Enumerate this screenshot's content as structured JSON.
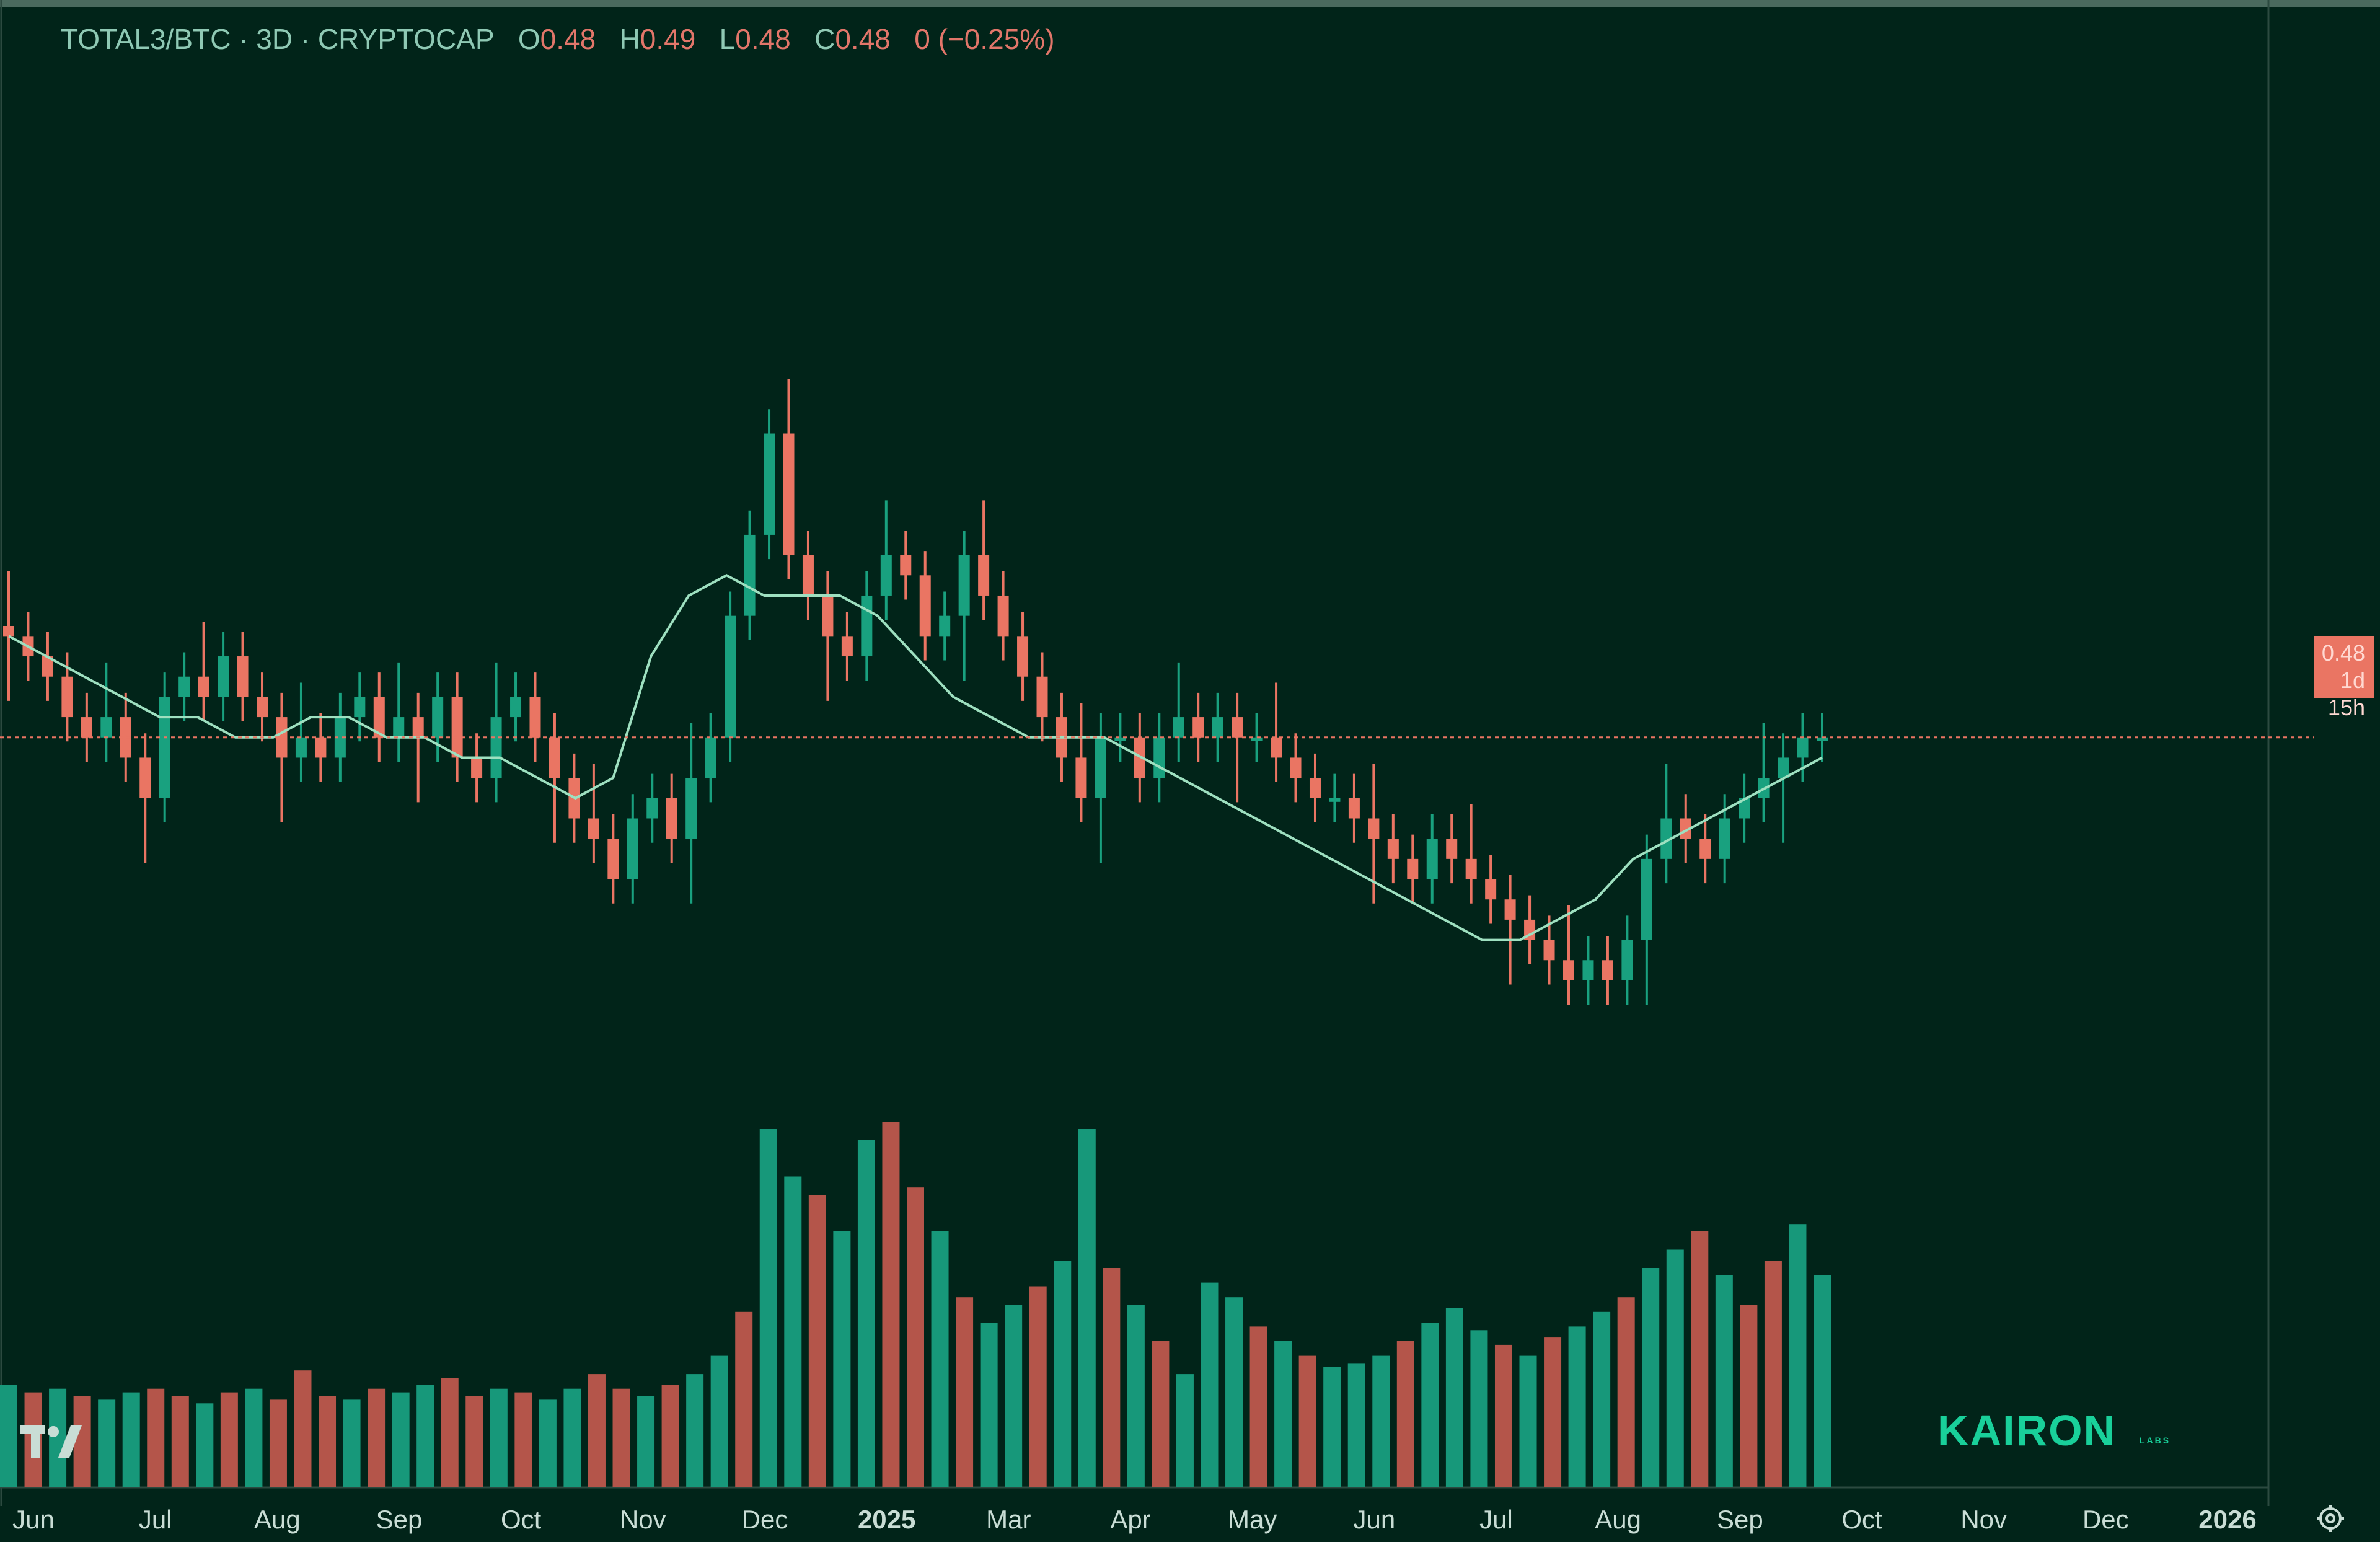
{
  "header": {
    "symbol": "TOTAL3/BTC · 3D · CRYPTOCAP",
    "o_label": "O",
    "o_value": "0.48",
    "h_label": "H",
    "h_value": "0.49",
    "l_label": "L",
    "l_value": "0.48",
    "c_label": "C",
    "c_value": "0.48",
    "change": "0 (−0.25%)"
  },
  "price_tag": {
    "price": "0.48",
    "countdown": "1d 15h"
  },
  "brand": {
    "name": "KAIRON",
    "sub": "LABS"
  },
  "icons": {
    "tradingview_logo": "tradingview-logo-icon",
    "settings": "gear-icon"
  },
  "colors": {
    "background": "#012419",
    "up": "#19a17f",
    "down": "#ea7563",
    "ma_line": "#9ee0c0",
    "axis_text": "#c9ddd5"
  },
  "chart_data": {
    "type": "candlestick",
    "interval": "3D",
    "x_ticks": [
      "Jun",
      "Jul",
      "Aug",
      "Sep",
      "Oct",
      "Nov",
      "Dec",
      "2025",
      "Mar",
      "Apr",
      "May",
      "Jun",
      "Jul",
      "Aug",
      "Sep",
      "Oct",
      "Nov",
      "Dec",
      "2026"
    ],
    "y_range": [
      0.33,
      0.74
    ],
    "last_price": 0.48,
    "grid": false,
    "series": [
      {
        "kind": "candles",
        "close_path": [
          0.53,
          0.52,
          0.51,
          0.49,
          0.48,
          0.49,
          0.47,
          0.45,
          0.5,
          0.51,
          0.5,
          0.52,
          0.5,
          0.49,
          0.47,
          0.48,
          0.47,
          0.49,
          0.5,
          0.48,
          0.49,
          0.48,
          0.5,
          0.47,
          0.46,
          0.49,
          0.5,
          0.48,
          0.46,
          0.44,
          0.43,
          0.41,
          0.44,
          0.45,
          0.43,
          0.46,
          0.48,
          0.54,
          0.58,
          0.63,
          0.57,
          0.55,
          0.53,
          0.52,
          0.55,
          0.57,
          0.56,
          0.53,
          0.54,
          0.57,
          0.55,
          0.53,
          0.51,
          0.49,
          0.47,
          0.45,
          0.48,
          0.48,
          0.46,
          0.48,
          0.49,
          0.48,
          0.49,
          0.48,
          0.48,
          0.47,
          0.46,
          0.45,
          0.45,
          0.44,
          0.43,
          0.42,
          0.41,
          0.43,
          0.42,
          0.41,
          0.4,
          0.39,
          0.38,
          0.37,
          0.36,
          0.37,
          0.36,
          0.38,
          0.42,
          0.44,
          0.43,
          0.42,
          0.44,
          0.45,
          0.46,
          0.47,
          0.48,
          0.48
        ]
      },
      {
        "kind": "moving_average",
        "close_path": [
          0.53,
          0.52,
          0.51,
          0.5,
          0.49,
          0.49,
          0.48,
          0.48,
          0.49,
          0.49,
          0.48,
          0.48,
          0.47,
          0.47,
          0.46,
          0.45,
          0.46,
          0.52,
          0.55,
          0.56,
          0.55,
          0.55,
          0.55,
          0.54,
          0.52,
          0.5,
          0.49,
          0.48,
          0.48,
          0.48,
          0.47,
          0.46,
          0.45,
          0.44,
          0.43,
          0.42,
          0.41,
          0.4,
          0.39,
          0.38,
          0.38,
          0.39,
          0.4,
          0.42,
          0.43,
          0.44,
          0.45,
          0.46,
          0.47
        ]
      },
      {
        "kind": "volume",
        "relative_values": [
          0.28,
          0.26,
          0.27,
          0.25,
          0.24,
          0.26,
          0.27,
          0.25,
          0.23,
          0.26,
          0.27,
          0.24,
          0.32,
          0.25,
          0.24,
          0.27,
          0.26,
          0.28,
          0.3,
          0.25,
          0.27,
          0.26,
          0.24,
          0.27,
          0.31,
          0.27,
          0.25,
          0.28,
          0.31,
          0.36,
          0.48,
          0.98,
          0.85,
          0.8,
          0.7,
          0.95,
          1.0,
          0.82,
          0.7,
          0.52,
          0.45,
          0.5,
          0.55,
          0.62,
          0.98,
          0.6,
          0.5,
          0.4,
          0.31,
          0.56,
          0.52,
          0.44,
          0.4,
          0.36,
          0.33,
          0.34,
          0.36,
          0.4,
          0.45,
          0.49,
          0.43,
          0.39,
          0.36,
          0.41,
          0.44,
          0.48,
          0.52,
          0.6,
          0.65,
          0.7,
          0.58,
          0.5,
          0.62,
          0.72,
          0.58
        ]
      }
    ]
  }
}
